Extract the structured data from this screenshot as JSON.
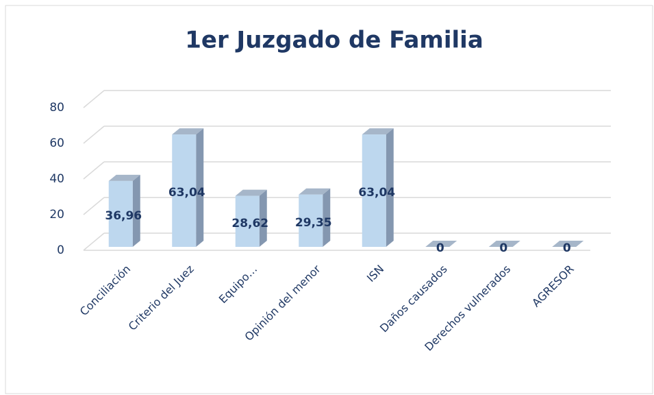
{
  "chart_data": {
    "type": "bar3d",
    "title": "1er Juzgado de Familia",
    "categories": [
      "Conciliación",
      "Criterio del Juez",
      "Equipo…",
      "Opinión del menor",
      "ISN",
      "Daños causados",
      "Derechos vulnerados",
      "AGRESOR"
    ],
    "values": [
      36.96,
      63.04,
      28.62,
      29.35,
      63.04,
      0,
      0,
      0
    ],
    "value_labels": [
      "36,96",
      "63,04",
      "28,62",
      "29,35",
      "63,04",
      "0",
      "0",
      "0"
    ],
    "color": "#bdd7ee",
    "ylim": [
      0,
      80
    ],
    "yticks": [
      0,
      20,
      40,
      60,
      80
    ],
    "grid": true
  }
}
